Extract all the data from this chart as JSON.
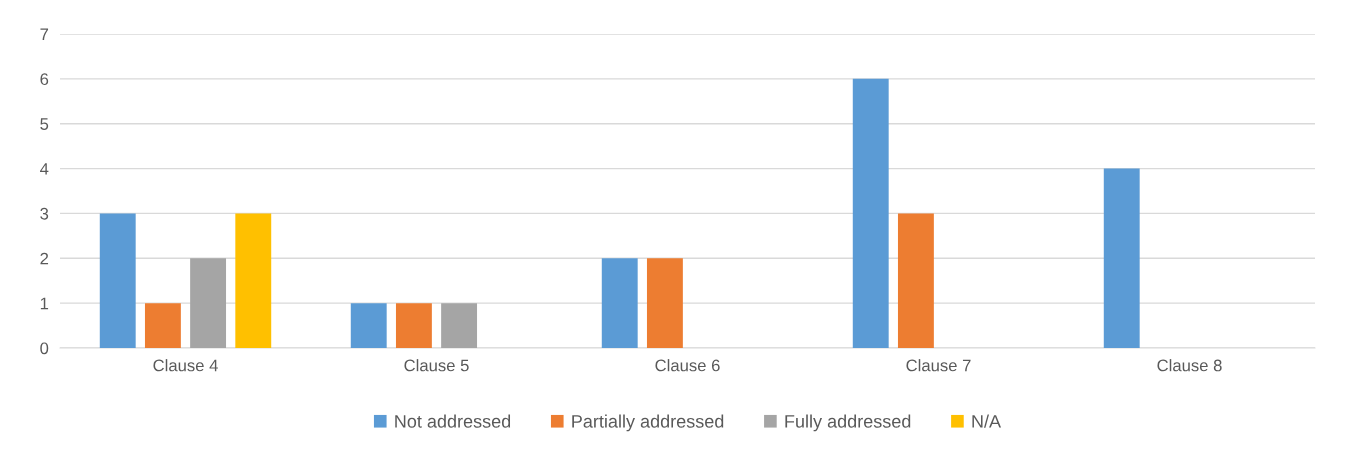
{
  "chart_data": {
    "type": "bar",
    "categories": [
      "Clause 4",
      "Clause 5",
      "Clause 6",
      "Clause 7",
      "Clause 8"
    ],
    "series": [
      {
        "name": "Not addressed",
        "color": "#5b9bd5",
        "values": [
          3,
          1,
          2,
          6,
          4
        ]
      },
      {
        "name": "Partially addressed",
        "color": "#ed7d31",
        "values": [
          1,
          1,
          2,
          3,
          0
        ]
      },
      {
        "name": "Fully addressed",
        "color": "#a5a5a5",
        "values": [
          2,
          1,
          0,
          0,
          0
        ]
      },
      {
        "name": "N/A",
        "color": "#ffc000",
        "values": [
          3,
          0,
          0,
          0,
          0
        ]
      }
    ],
    "ylim": [
      0,
      7
    ],
    "yticks": [
      0,
      1,
      2,
      3,
      4,
      5,
      6,
      7
    ],
    "grid": "y",
    "legend": "bottom"
  }
}
